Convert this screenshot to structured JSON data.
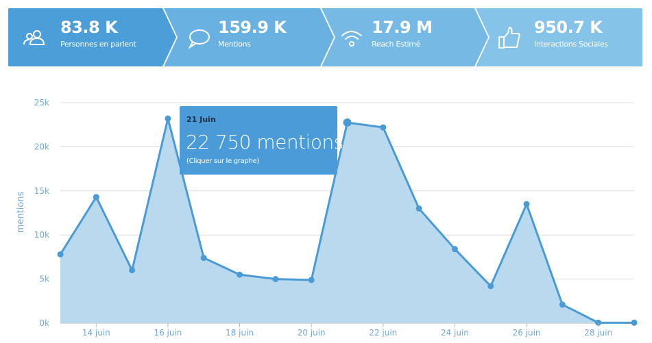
{
  "stats": [
    {
      "value": "83.8 K",
      "label": "Personnes en parlent",
      "icon": "people-icon"
    },
    {
      "value": "159.9 K",
      "label": "Mentions",
      "icon": "speech-bubble-icon"
    },
    {
      "value": "17.9 M",
      "label": "Reach Estimé",
      "icon": "wifi-signal-icon"
    },
    {
      "value": "950.7 K",
      "label": "Interactions Sociales",
      "icon": "thumbs-up-icon"
    }
  ],
  "colors": {
    "segments": [
      "#4b9ed8",
      "#69b1e1",
      "#75b9e4",
      "#86c3e8"
    ],
    "line": "#4a9ad6",
    "fill": "#b9d9ef",
    "tooltip": "#4a9bd8"
  },
  "tooltip": {
    "date": "21 Juin",
    "value": "22 750 mentions",
    "note": "(Cliquer sur le graphe)"
  },
  "chart_data": {
    "type": "area",
    "x": [
      "13 juin",
      "14 juin",
      "15 juin",
      "16 juin",
      "17 juin",
      "18 juin",
      "19 juin",
      "20 juin",
      "21 juin",
      "22 juin",
      "23 juin",
      "24 juin",
      "25 juin",
      "26 juin",
      "27 juin",
      "28 juin",
      "29 juin"
    ],
    "x_tick_labels": [
      "14 juin",
      "16 juin",
      "18 juin",
      "20 juin",
      "22 juin",
      "24 juin",
      "26 juin",
      "28 juin"
    ],
    "values": [
      7800,
      14300,
      6000,
      23200,
      7400,
      5500,
      5000,
      4900,
      22750,
      22200,
      13000,
      8400,
      4200,
      13500,
      2100,
      50,
      50
    ],
    "ylabel": "mentions",
    "ylim": [
      0,
      25000
    ],
    "y_ticks": [
      0,
      5000,
      10000,
      15000,
      20000,
      25000
    ],
    "y_tick_labels": [
      "0k",
      "5k",
      "10k",
      "15k",
      "20k",
      "25k"
    ],
    "grid": true,
    "highlight_index": 8
  }
}
